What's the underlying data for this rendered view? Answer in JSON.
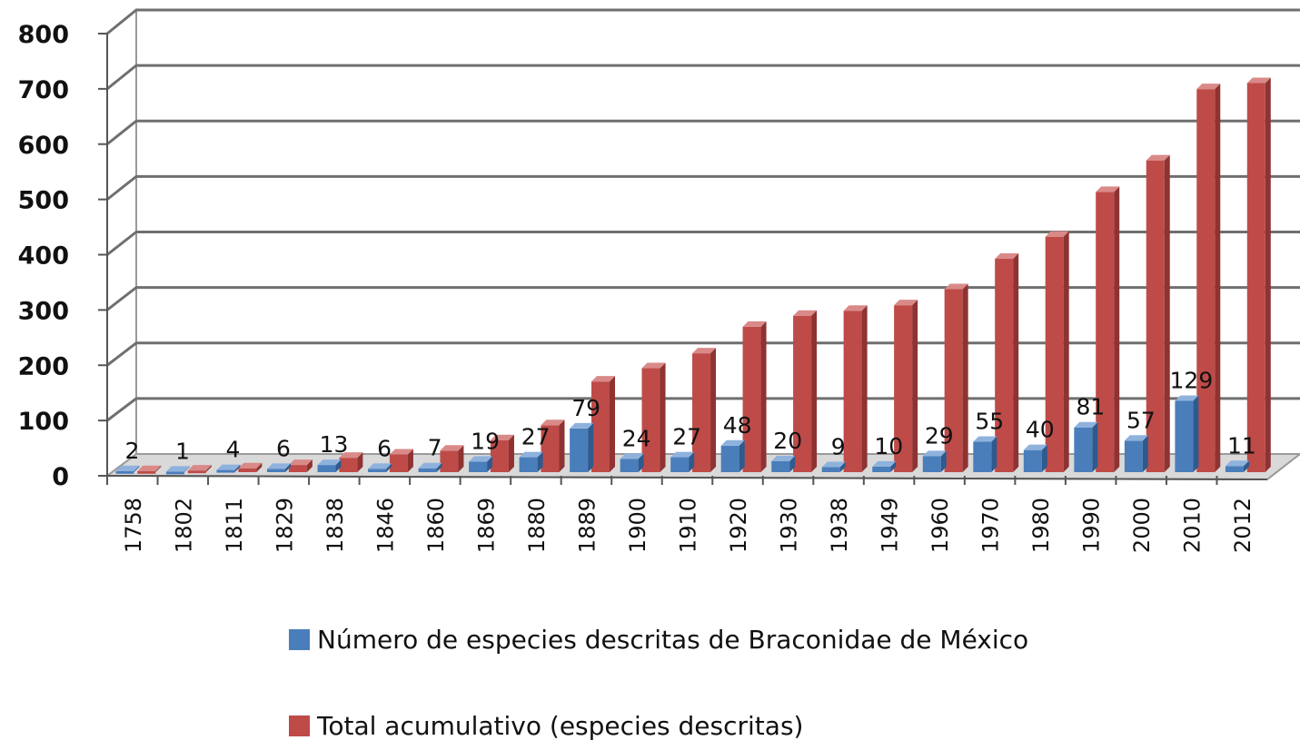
{
  "chart_data": {
    "type": "bar",
    "categories": [
      "1758",
      "1802",
      "1811",
      "1829",
      "1838",
      "1846",
      "1860",
      "1869",
      "1880",
      "1889",
      "1900",
      "1910",
      "1920",
      "1930",
      "1938",
      "1949",
      "1960",
      "1970",
      "1980",
      "1990",
      "2000",
      "2010",
      "2012"
    ],
    "series": [
      {
        "name": "Número de especies descritas de Braconidae de México",
        "color": "#4a7ebb",
        "values": [
          2,
          1,
          4,
          6,
          13,
          6,
          7,
          19,
          27,
          79,
          24,
          27,
          48,
          20,
          9,
          10,
          29,
          55,
          40,
          81,
          57,
          129,
          11
        ]
      },
      {
        "name": "Total acumulativo (especies descritas)",
        "color": "#be4b48",
        "values": [
          2,
          3,
          7,
          13,
          26,
          32,
          39,
          58,
          85,
          164,
          188,
          215,
          263,
          283,
          292,
          302,
          331,
          386,
          426,
          507,
          564,
          693,
          704
        ]
      }
    ],
    "data_labels": [
      "2",
      "1",
      "4",
      "6",
      "13",
      "6",
      "7",
      "19",
      "27",
      "79",
      "24",
      "27",
      "48",
      "20",
      "9",
      "10",
      "29",
      "55",
      "40",
      "81",
      "57",
      "129",
      "11"
    ],
    "yticks": [
      "0",
      "100",
      "200",
      "300",
      "400",
      "500",
      "600",
      "700",
      "800"
    ],
    "ylim": [
      0,
      800
    ],
    "grid": true,
    "legend_position": "bottom",
    "title": "",
    "xlabel": "",
    "ylabel": ""
  }
}
